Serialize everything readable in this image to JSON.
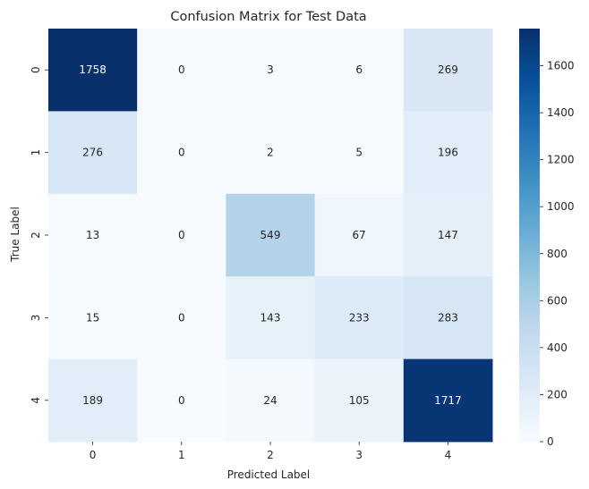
{
  "chart_data": {
    "type": "heatmap",
    "title": "Confusion Matrix for Test Data",
    "xlabel": "Predicted Label",
    "ylabel": "True Label",
    "x_categories": [
      "0",
      "1",
      "2",
      "3",
      "4"
    ],
    "y_categories": [
      "0",
      "1",
      "2",
      "3",
      "4"
    ],
    "values": [
      [
        1758,
        0,
        3,
        6,
        269
      ],
      [
        276,
        0,
        2,
        5,
        196
      ],
      [
        13,
        0,
        549,
        67,
        147
      ],
      [
        15,
        0,
        143,
        233,
        283
      ],
      [
        189,
        0,
        24,
        105,
        1717
      ]
    ],
    "colormap": "Blues",
    "color_range": [
      0,
      1758
    ],
    "colorbar_ticks": [
      "0",
      "200",
      "400",
      "600",
      "800",
      "1000",
      "1200",
      "1400",
      "1600"
    ],
    "colors": {
      "low": "#f7fbff",
      "high": "#08306b"
    }
  }
}
